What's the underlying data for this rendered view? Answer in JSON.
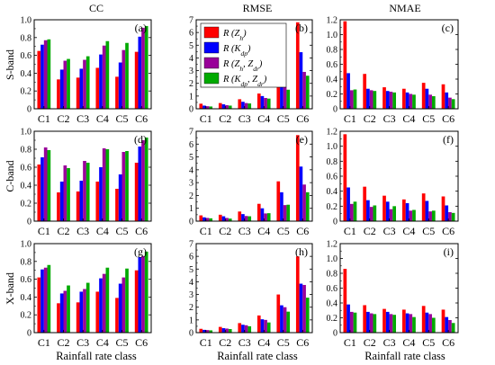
{
  "figure": {
    "columns": [
      "CC",
      "RMSE",
      "NMAE"
    ],
    "rows": [
      "S-band",
      "C-band",
      "X-band"
    ],
    "xlabel": "Rainfall rate class"
  },
  "legend": [
    {
      "label": "R (Z",
      "sub": "h",
      "tail": ")",
      "color": "#ff0000"
    },
    {
      "label": "R (K",
      "sub": "dp",
      "tail": ")",
      "color": "#0000ff"
    },
    {
      "label": "R (Z",
      "sub": "h",
      "mid": ", Z",
      "sub2": "dr",
      "tail": ")",
      "color": "#990099"
    },
    {
      "label": "R (K",
      "sub": "dp",
      "mid": ", Z",
      "sub2": "dr",
      "tail": ")",
      "color": "#00aa00"
    }
  ],
  "chart_data": [
    {
      "type": "bar",
      "panel": "(a)",
      "band": "S-band",
      "metric": "CC",
      "categories": [
        "C1",
        "C2",
        "C3",
        "C4",
        "C5",
        "C6"
      ],
      "ylim": [
        0,
        1.0
      ],
      "yticks": [
        "0",
        "0.2",
        "0.4",
        "0.6",
        "0.8",
        "1.0"
      ],
      "series": [
        {
          "values": [
            0.65,
            0.33,
            0.35,
            0.46,
            0.36,
            0.64
          ]
        },
        {
          "values": [
            0.72,
            0.44,
            0.45,
            0.61,
            0.52,
            0.81
          ]
        },
        {
          "values": [
            0.77,
            0.54,
            0.55,
            0.71,
            0.66,
            0.91
          ]
        },
        {
          "values": [
            0.78,
            0.56,
            0.59,
            0.76,
            0.74,
            0.93
          ]
        }
      ]
    },
    {
      "type": "bar",
      "panel": "(b)",
      "band": "S-band",
      "metric": "RMSE",
      "categories": [
        "C1",
        "C2",
        "C3",
        "C4",
        "C5",
        "C6"
      ],
      "ylim": [
        0,
        7
      ],
      "yticks": [
        "0",
        "1",
        "2",
        "3",
        "4",
        "5",
        "6",
        "7"
      ],
      "series": [
        {
          "values": [
            0.4,
            0.45,
            0.75,
            1.2,
            3.05,
            6.8
          ]
        },
        {
          "values": [
            0.25,
            0.35,
            0.55,
            1.0,
            2.25,
            4.45
          ]
        },
        {
          "values": [
            0.2,
            0.28,
            0.45,
            0.85,
            1.7,
            2.9
          ]
        },
        {
          "values": [
            0.18,
            0.25,
            0.42,
            0.8,
            1.5,
            2.6
          ]
        }
      ]
    },
    {
      "type": "bar",
      "panel": "(c)",
      "band": "S-band",
      "metric": "NMAE",
      "categories": [
        "C1",
        "C2",
        "C3",
        "C4",
        "C5",
        "C6"
      ],
      "ylim": [
        0,
        1.2
      ],
      "yticks": [
        "0",
        "0.2",
        "0.4",
        "0.6",
        "0.8",
        "1.0",
        "1.2"
      ],
      "series": [
        {
          "values": [
            1.18,
            0.47,
            0.29,
            0.27,
            0.35,
            0.33
          ]
        },
        {
          "values": [
            0.48,
            0.27,
            0.24,
            0.22,
            0.27,
            0.22
          ]
        },
        {
          "values": [
            0.25,
            0.25,
            0.23,
            0.2,
            0.19,
            0.15
          ]
        },
        {
          "values": [
            0.26,
            0.24,
            0.22,
            0.19,
            0.17,
            0.13
          ]
        }
      ]
    },
    {
      "type": "bar",
      "panel": "(d)",
      "band": "C-band",
      "metric": "CC",
      "categories": [
        "C1",
        "C2",
        "C3",
        "C4",
        "C5",
        "C6"
      ],
      "ylim": [
        0,
        1.0
      ],
      "yticks": [
        "0",
        "0.2",
        "0.4",
        "0.6",
        "0.8",
        "1.0"
      ],
      "series": [
        {
          "values": [
            0.63,
            0.32,
            0.33,
            0.44,
            0.36,
            0.65
          ]
        },
        {
          "values": [
            0.71,
            0.44,
            0.45,
            0.6,
            0.52,
            0.83
          ]
        },
        {
          "values": [
            0.82,
            0.62,
            0.67,
            0.81,
            0.77,
            0.9
          ]
        },
        {
          "values": [
            0.79,
            0.59,
            0.65,
            0.8,
            0.78,
            0.93
          ]
        }
      ]
    },
    {
      "type": "bar",
      "panel": "(e)",
      "band": "C-band",
      "metric": "RMSE",
      "categories": [
        "C1",
        "C2",
        "C3",
        "C4",
        "C5",
        "C6"
      ],
      "ylim": [
        0,
        7
      ],
      "yticks": [
        "0",
        "1",
        "2",
        "3",
        "4",
        "5",
        "6",
        "7"
      ],
      "series": [
        {
          "values": [
            0.45,
            0.5,
            0.75,
            1.35,
            3.1,
            6.7
          ]
        },
        {
          "values": [
            0.3,
            0.38,
            0.55,
            1.0,
            2.25,
            4.25
          ]
        },
        {
          "values": [
            0.25,
            0.25,
            0.4,
            0.6,
            1.25,
            2.85
          ]
        },
        {
          "values": [
            0.22,
            0.2,
            0.38,
            0.62,
            1.28,
            2.25
          ]
        }
      ]
    },
    {
      "type": "bar",
      "panel": "(f)",
      "band": "C-band",
      "metric": "NMAE",
      "categories": [
        "C1",
        "C2",
        "C3",
        "C4",
        "C5",
        "C6"
      ],
      "ylim": [
        0,
        1.2
      ],
      "yticks": [
        "0",
        "0.2",
        "0.4",
        "0.6",
        "0.8",
        "1.0",
        "1.2"
      ],
      "series": [
        {
          "values": [
            1.16,
            0.46,
            0.34,
            0.29,
            0.37,
            0.33
          ]
        },
        {
          "values": [
            0.45,
            0.28,
            0.26,
            0.24,
            0.27,
            0.21
          ]
        },
        {
          "values": [
            0.23,
            0.19,
            0.16,
            0.14,
            0.13,
            0.12
          ]
        },
        {
          "values": [
            0.26,
            0.21,
            0.2,
            0.15,
            0.14,
            0.11
          ]
        }
      ]
    },
    {
      "type": "bar",
      "panel": "(g)",
      "band": "X-band",
      "metric": "CC",
      "categories": [
        "C1",
        "C2",
        "C3",
        "C4",
        "C5",
        "C6"
      ],
      "ylim": [
        0,
        1.0
      ],
      "yticks": [
        "0",
        "0.2",
        "0.4",
        "0.6",
        "0.8",
        "1.0"
      ],
      "series": [
        {
          "values": [
            0.62,
            0.33,
            0.34,
            0.46,
            0.39,
            0.7
          ]
        },
        {
          "values": [
            0.71,
            0.44,
            0.46,
            0.61,
            0.55,
            0.85
          ]
        },
        {
          "values": [
            0.73,
            0.47,
            0.49,
            0.66,
            0.62,
            0.86
          ]
        },
        {
          "values": [
            0.76,
            0.53,
            0.56,
            0.73,
            0.72,
            0.91
          ]
        }
      ]
    },
    {
      "type": "bar",
      "panel": "(h)",
      "band": "X-band",
      "metric": "RMSE",
      "categories": [
        "C1",
        "C2",
        "C3",
        "C4",
        "C5",
        "C6"
      ],
      "ylim": [
        0,
        7
      ],
      "yticks": [
        "0",
        "1",
        "2",
        "3",
        "4",
        "5",
        "6",
        "7"
      ],
      "series": [
        {
          "values": [
            0.3,
            0.45,
            0.75,
            1.35,
            3.0,
            6.0
          ]
        },
        {
          "values": [
            0.22,
            0.35,
            0.62,
            1.05,
            2.15,
            3.85
          ]
        },
        {
          "values": [
            0.2,
            0.32,
            0.58,
            1.0,
            2.0,
            3.75
          ]
        },
        {
          "values": [
            0.18,
            0.28,
            0.5,
            0.8,
            1.65,
            2.75
          ]
        }
      ]
    },
    {
      "type": "bar",
      "panel": "(i)",
      "band": "X-band",
      "metric": "NMAE",
      "categories": [
        "C1",
        "C2",
        "C3",
        "C4",
        "C5",
        "C6"
      ],
      "ylim": [
        0,
        1.2
      ],
      "yticks": [
        "0",
        "0.2",
        "0.4",
        "0.6",
        "0.8",
        "1.0",
        "1.2"
      ],
      "series": [
        {
          "values": [
            0.86,
            0.37,
            0.32,
            0.31,
            0.36,
            0.31
          ]
        },
        {
          "values": [
            0.38,
            0.28,
            0.28,
            0.26,
            0.27,
            0.21
          ]
        },
        {
          "values": [
            0.28,
            0.26,
            0.25,
            0.25,
            0.25,
            0.17
          ]
        },
        {
          "values": [
            0.27,
            0.25,
            0.24,
            0.21,
            0.2,
            0.13
          ]
        }
      ]
    }
  ]
}
